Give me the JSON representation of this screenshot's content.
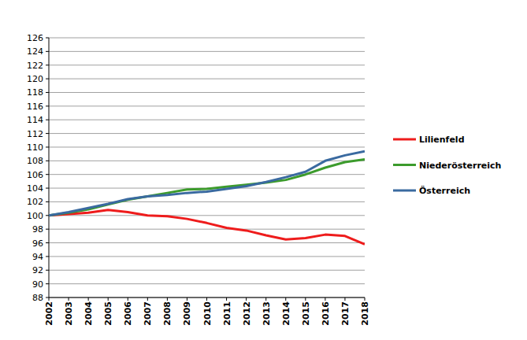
{
  "chart_data": {
    "type": "line",
    "categories": [
      "2002",
      "2003",
      "2004",
      "2005",
      "2006",
      "2007",
      "2008",
      "2009",
      "2010",
      "2011",
      "2012",
      "2013",
      "2014",
      "2015",
      "2016",
      "2017",
      "2018"
    ],
    "series": [
      {
        "name": "Lilienfeld",
        "color": "#ee1c1c",
        "values": [
          100,
          100.2,
          100.4,
          100.8,
          100.5,
          100.0,
          99.9,
          99.5,
          98.9,
          98.2,
          97.8,
          97.1,
          96.5,
          96.7,
          97.2,
          97.0,
          95.8
        ]
      },
      {
        "name": "Niederösterreich",
        "color": "#3c9b2c",
        "values": [
          100,
          100.4,
          100.9,
          101.6,
          102.3,
          102.8,
          103.3,
          103.8,
          103.9,
          104.2,
          104.5,
          104.8,
          105.2,
          106.0,
          107.0,
          107.8,
          108.2
        ]
      },
      {
        "name": "Österreich",
        "color": "#3a6aa0",
        "values": [
          100,
          100.5,
          101.1,
          101.7,
          102.4,
          102.8,
          103.0,
          103.3,
          103.5,
          103.9,
          104.3,
          104.9,
          105.6,
          106.4,
          108.0,
          108.8,
          109.4
        ]
      }
    ],
    "ylim": [
      88,
      126
    ],
    "yticks": [
      88,
      90,
      92,
      94,
      96,
      98,
      100,
      102,
      104,
      106,
      108,
      110,
      112,
      114,
      116,
      118,
      120,
      122,
      124,
      126
    ],
    "grid": true,
    "legend": "right"
  }
}
